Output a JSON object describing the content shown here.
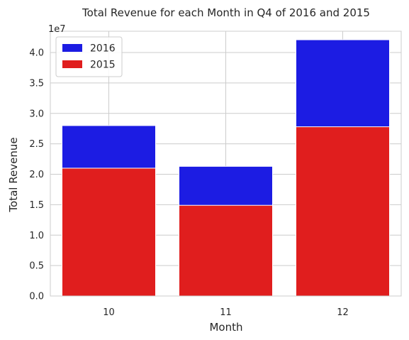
{
  "chart_data": {
    "type": "bar",
    "title": "Total Revenue for each Month in Q4 of 2016 and 2015",
    "xlabel": "Month",
    "ylabel": "Total Revenue",
    "y_offset_label": "1e7",
    "y_scale": 10000000,
    "categories": [
      "10",
      "11",
      "12"
    ],
    "ylim": [
      0,
      43500000
    ],
    "yticks": [
      0.0,
      0.5,
      1.0,
      1.5,
      2.0,
      2.5,
      3.0,
      3.5,
      4.0
    ],
    "ytick_labels": [
      "0.0",
      "0.5",
      "1.0",
      "1.5",
      "2.0",
      "2.5",
      "3.0",
      "3.5",
      "4.0"
    ],
    "grid": true,
    "legend_position": "top-left",
    "overlay": true,
    "series": [
      {
        "name": "2016",
        "color": "#1c1ce3",
        "values": [
          28000000,
          21300000,
          42100000
        ]
      },
      {
        "name": "2015",
        "color": "#e01e1e",
        "values": [
          21000000,
          14900000,
          27800000
        ]
      }
    ]
  }
}
